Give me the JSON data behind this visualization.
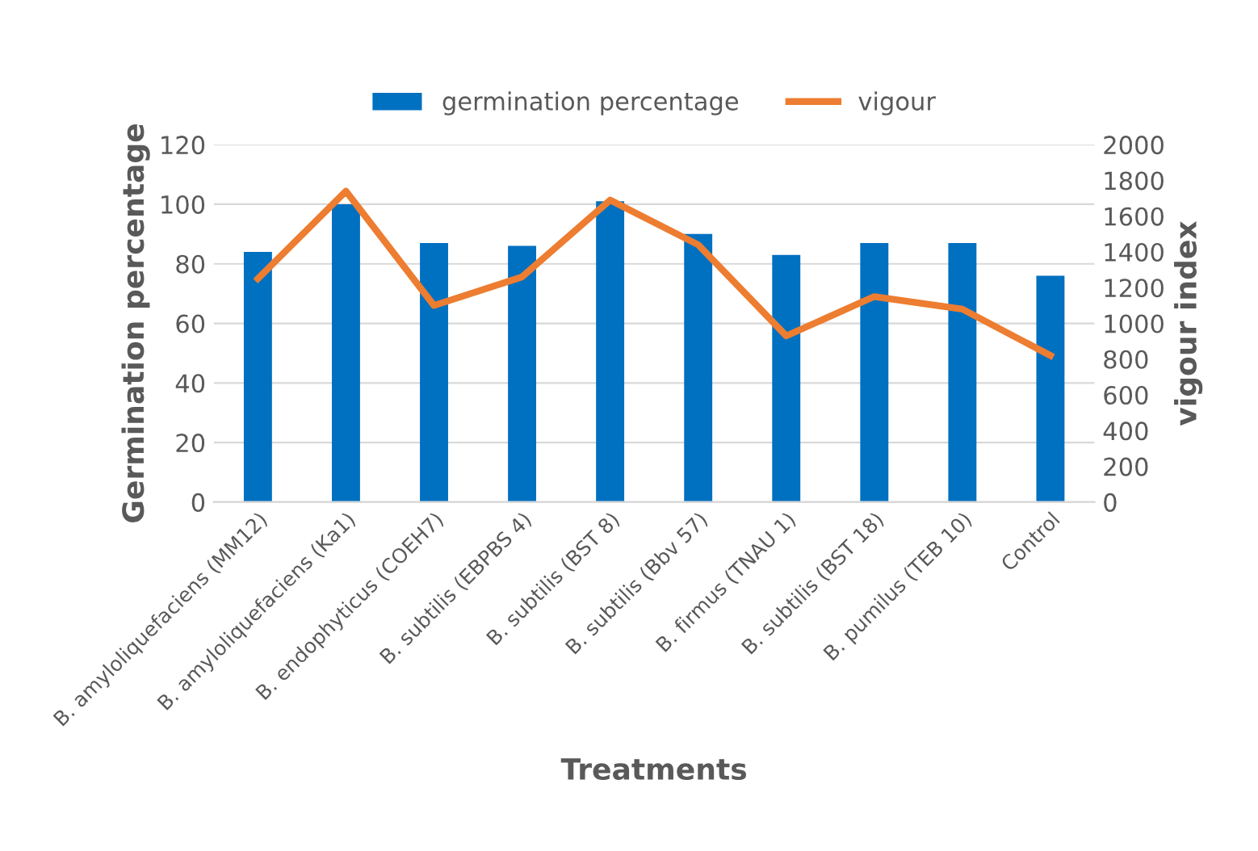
{
  "chart_data": {
    "type": "bar",
    "categories": [
      "B. amyloliquefaciens (MM12)",
      "B. amyloliquefaciens (Ka1)",
      "B. endophyticus (COEH7)",
      "B. subtilis (EBPBS 4)",
      "B. subtilis (BST 8)",
      "B. subtilis (Bbv 57)",
      "B. firmus (TNAU 1)",
      "B. subtilis (BST 18)",
      "B. pumilus (TEB 10)",
      "Control"
    ],
    "series": [
      {
        "name": "germination percentage",
        "color": "#0070c0",
        "values": [
          84,
          100,
          87,
          86,
          101,
          90,
          83,
          87,
          87,
          76
        ]
      },
      {
        "name": "vigour",
        "type": "line",
        "axis": "y2",
        "color": "#ed7d31",
        "values": [
          1250,
          1740,
          1100,
          1260,
          1690,
          1440,
          930,
          1150,
          1080,
          820
        ]
      }
    ],
    "xlabel": "Treatments",
    "ylabel": "Germination percentage",
    "y2label": "vigour index",
    "ylim": [
      0,
      120
    ],
    "yticks": [
      0,
      20,
      40,
      60,
      80,
      100,
      120
    ],
    "y2lim": [
      0,
      2000
    ],
    "y2ticks": [
      0,
      200,
      400,
      600,
      800,
      1000,
      1200,
      1400,
      1600,
      1800,
      2000
    ],
    "grid": "y",
    "legend": "top",
    "marker": "none"
  }
}
